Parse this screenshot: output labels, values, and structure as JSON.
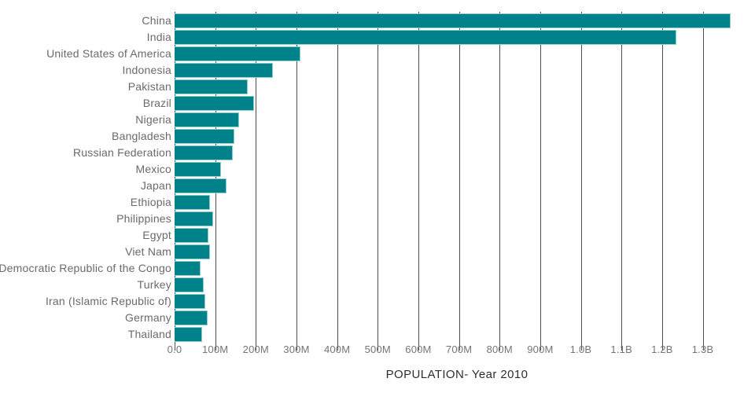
{
  "chart_data": {
    "type": "bar",
    "orientation": "horizontal",
    "title": "",
    "xlabel": "POPULATION- Year 2010",
    "ylabel": "",
    "categories": [
      "China",
      "India",
      "United States of America",
      "Indonesia",
      "Pakistan",
      "Brazil",
      "Nigeria",
      "Bangladesh",
      "Russian Federation",
      "Mexico",
      "Japan",
      "Ethiopia",
      "Philippines",
      "Egypt",
      "Viet Nam",
      "Democratic Republic of the Congo",
      "Turkey",
      "Iran (Islamic Republic of)",
      "Germany",
      "Thailand"
    ],
    "values_millions": [
      1368.8,
      1234.3,
      309.0,
      241.8,
      179.4,
      195.7,
      158.5,
      147.6,
      143.5,
      114.1,
      128.1,
      87.6,
      94.0,
      82.8,
      88.0,
      64.6,
      72.3,
      74.6,
      80.8,
      67.2
    ],
    "x_tick_labels": [
      "0.0",
      "100M",
      "200M",
      "300M",
      "400M",
      "500M",
      "600M",
      "700M",
      "800M",
      "900M",
      "1.0B",
      "1.1B",
      "1.2B",
      "1.3B"
    ],
    "x_tick_values_millions": [
      0,
      100,
      200,
      300,
      400,
      500,
      600,
      700,
      800,
      900,
      1000,
      1100,
      1200,
      1300
    ],
    "xlim_millions": [
      0,
      1390
    ],
    "grid": "vertical",
    "legend_position": "none",
    "colors": {
      "bar_fill": "#00828a",
      "bar_edge": "#8fcdcb",
      "gridline": "#4d4d4d",
      "tick_label": "#757575",
      "category_label": "#6a6a6a",
      "axis_title": "#2e2e2e",
      "background": "#ffffff"
    }
  }
}
